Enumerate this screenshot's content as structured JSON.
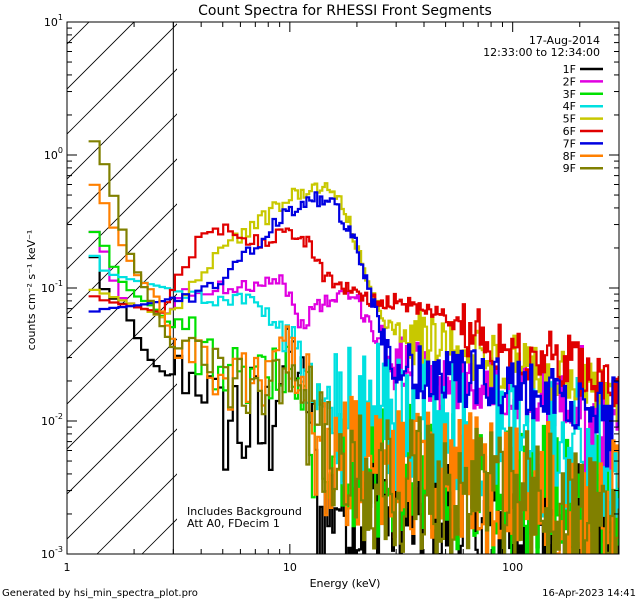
{
  "chart_data": {
    "type": "line",
    "title": "Count Spectra for RHESSI Front Segments",
    "xlabel": "Energy (keV)",
    "ylabel": "counts cm⁻² s⁻¹ keV⁻¹",
    "x_scale": "log",
    "y_scale": "log",
    "xlim": [
      1,
      300
    ],
    "ylim": [
      0.001,
      10
    ],
    "x_tick_labels": [
      {
        "value": 1,
        "label": "1"
      },
      {
        "value": 10,
        "label": "10"
      },
      {
        "value": 100,
        "label": "100"
      }
    ],
    "y_tick_labels": [
      {
        "value": 10,
        "base": "10",
        "exp": "1"
      },
      {
        "value": 1,
        "base": "10",
        "exp": "0"
      },
      {
        "value": 0.1,
        "base": "10",
        "exp": "-1"
      },
      {
        "value": 0.01,
        "base": "10",
        "exp": "-2"
      },
      {
        "value": 0.001,
        "base": "10",
        "exp": "-3"
      }
    ],
    "excluded_region_keV": [
      1,
      3
    ],
    "date": "17-Aug-2014",
    "time_range": "12:33:00 to 12:34:00",
    "annotations": [
      "Includes Background",
      "Att A0, FDecim 1"
    ],
    "footer_left": "Generated by hsi_min_spectra_plot.pro",
    "footer_right": "16-Apr-2023 14:41",
    "series": [
      {
        "name": "1F",
        "color": "#000000",
        "points": [
          [
            1.25,
            0.23
          ],
          [
            1.5,
            0.09
          ],
          [
            1.8,
            0.075
          ],
          [
            2.1,
            0.04
          ],
          [
            2.4,
            0.028
          ],
          [
            2.8,
            0.022
          ],
          [
            3.2,
            0.023
          ],
          [
            4,
            0.02
          ],
          [
            5,
            0.012
          ],
          [
            6,
            0.0095
          ],
          [
            7,
            0.0085
          ],
          [
            8,
            0.008
          ],
          [
            9,
            0.02
          ],
          [
            10,
            0.035
          ],
          [
            11,
            0.025
          ],
          [
            12,
            0.015
          ],
          [
            13,
            0.004
          ],
          [
            14,
            0.0015
          ],
          [
            16,
            0.003
          ],
          [
            18,
            0.0022
          ],
          [
            20,
            0.0018
          ],
          [
            25,
            0.0025
          ],
          [
            30,
            0.0022
          ],
          [
            40,
            0.002
          ],
          [
            60,
            0.0018
          ],
          [
            80,
            0.0017
          ],
          [
            120,
            0.0018
          ],
          [
            200,
            0.0016
          ],
          [
            300,
            0.0013
          ]
        ]
      },
      {
        "name": "2F",
        "color": "#e000e0",
        "points": [
          [
            1.25,
            0.28
          ],
          [
            1.4,
            0.25
          ],
          [
            1.6,
            0.12
          ],
          [
            1.8,
            0.08
          ],
          [
            2.2,
            0.07
          ],
          [
            2.7,
            0.06
          ],
          [
            3.5,
            0.09
          ],
          [
            5,
            0.1
          ],
          [
            7,
            0.11
          ],
          [
            9,
            0.12
          ],
          [
            10,
            0.09
          ],
          [
            11,
            0.05
          ],
          [
            13,
            0.07
          ],
          [
            15,
            0.08
          ],
          [
            18,
            0.09
          ],
          [
            20,
            0.08
          ],
          [
            22,
            0.06
          ],
          [
            25,
            0.045
          ],
          [
            28,
            0.03
          ],
          [
            35,
            0.025
          ],
          [
            45,
            0.02
          ],
          [
            60,
            0.02
          ],
          [
            80,
            0.018
          ],
          [
            120,
            0.016
          ],
          [
            200,
            0.012
          ],
          [
            300,
            0.008
          ]
        ]
      },
      {
        "name": "3F",
        "color": "#00e000",
        "points": [
          [
            1.25,
            0.3
          ],
          [
            1.5,
            0.2
          ],
          [
            1.7,
            0.12
          ],
          [
            2,
            0.09
          ],
          [
            2.5,
            0.07
          ],
          [
            3,
            0.05
          ],
          [
            4,
            0.035
          ],
          [
            5,
            0.025
          ],
          [
            6,
            0.02
          ],
          [
            7,
            0.02
          ],
          [
            8,
            0.018
          ],
          [
            9,
            0.025
          ],
          [
            10,
            0.03
          ],
          [
            11,
            0.02
          ],
          [
            12,
            0.01
          ],
          [
            14,
            0.006
          ],
          [
            17,
            0.004
          ],
          [
            20,
            0.0045
          ],
          [
            25,
            0.004
          ],
          [
            30,
            0.004
          ],
          [
            45,
            0.0035
          ],
          [
            60,
            0.0033
          ],
          [
            80,
            0.003
          ],
          [
            120,
            0.003
          ],
          [
            200,
            0.0025
          ],
          [
            300,
            0.002
          ]
        ]
      },
      {
        "name": "4F",
        "color": "#00e0e0",
        "points": [
          [
            1.25,
            0.2
          ],
          [
            1.5,
            0.13
          ],
          [
            1.8,
            0.12
          ],
          [
            2.2,
            0.11
          ],
          [
            2.8,
            0.1
          ],
          [
            3.5,
            0.09
          ],
          [
            4.5,
            0.08
          ],
          [
            6,
            0.085
          ],
          [
            7,
            0.08
          ],
          [
            8,
            0.06
          ],
          [
            9,
            0.05
          ],
          [
            10,
            0.04
          ],
          [
            11,
            0.035
          ],
          [
            12,
            0.02
          ],
          [
            14,
            0.012
          ],
          [
            16,
            0.012
          ],
          [
            20,
            0.01
          ],
          [
            25,
            0.011
          ],
          [
            30,
            0.01
          ],
          [
            40,
            0.009
          ],
          [
            60,
            0.009
          ],
          [
            80,
            0.008
          ],
          [
            120,
            0.007
          ],
          [
            200,
            0.006
          ],
          [
            300,
            0.005
          ]
        ]
      },
      {
        "name": "5F",
        "color": "#c8c800",
        "points": [
          [
            1.25,
            0.1
          ],
          [
            1.5,
            0.09
          ],
          [
            1.8,
            0.08
          ],
          [
            2.2,
            0.07
          ],
          [
            2.7,
            0.06
          ],
          [
            3,
            0.07
          ],
          [
            3.5,
            0.09
          ],
          [
            4,
            0.13
          ],
          [
            5,
            0.2
          ],
          [
            6,
            0.25
          ],
          [
            7,
            0.3
          ],
          [
            8,
            0.35
          ],
          [
            9,
            0.42
          ],
          [
            10,
            0.48
          ],
          [
            11,
            0.52
          ],
          [
            12,
            0.56
          ],
          [
            13,
            0.58
          ],
          [
            14,
            0.57
          ],
          [
            15,
            0.55
          ],
          [
            16,
            0.52
          ],
          [
            17,
            0.45
          ],
          [
            18,
            0.35
          ],
          [
            20,
            0.2
          ],
          [
            22,
            0.12
          ],
          [
            24,
            0.08
          ],
          [
            26,
            0.06
          ],
          [
            30,
            0.05
          ],
          [
            35,
            0.045
          ],
          [
            40,
            0.04
          ],
          [
            50,
            0.036
          ],
          [
            60,
            0.033
          ],
          [
            80,
            0.03
          ],
          [
            100,
            0.027
          ],
          [
            150,
            0.022
          ],
          [
            200,
            0.018
          ],
          [
            250,
            0.016
          ],
          [
            300,
            0.014
          ]
        ]
      },
      {
        "name": "6F",
        "color": "#e00000",
        "points": [
          [
            1.25,
            0.09
          ],
          [
            1.5,
            0.08
          ],
          [
            1.8,
            0.075
          ],
          [
            2.2,
            0.07
          ],
          [
            2.7,
            0.065
          ],
          [
            3,
            0.1
          ],
          [
            3.3,
            0.15
          ],
          [
            3.7,
            0.2
          ],
          [
            4.2,
            0.25
          ],
          [
            5,
            0.27
          ],
          [
            6,
            0.24
          ],
          [
            7,
            0.22
          ],
          [
            8,
            0.23
          ],
          [
            9,
            0.26
          ],
          [
            10,
            0.27
          ],
          [
            11,
            0.26
          ],
          [
            12,
            0.22
          ],
          [
            13,
            0.17
          ],
          [
            14,
            0.13
          ],
          [
            16,
            0.11
          ],
          [
            18,
            0.1
          ],
          [
            20,
            0.09
          ],
          [
            22,
            0.085
          ],
          [
            25,
            0.08
          ],
          [
            30,
            0.08
          ],
          [
            40,
            0.07
          ],
          [
            50,
            0.06
          ],
          [
            60,
            0.05
          ],
          [
            80,
            0.04
          ],
          [
            100,
            0.035
          ],
          [
            150,
            0.03
          ],
          [
            200,
            0.025
          ],
          [
            300,
            0.02
          ]
        ]
      },
      {
        "name": "7F",
        "color": "#0000e0",
        "points": [
          [
            1.25,
            0.065
          ],
          [
            1.5,
            0.07
          ],
          [
            1.8,
            0.072
          ],
          [
            2.2,
            0.075
          ],
          [
            2.7,
            0.08
          ],
          [
            3,
            0.085
          ],
          [
            3.5,
            0.08
          ],
          [
            4,
            0.09
          ],
          [
            5,
            0.12
          ],
          [
            6,
            0.16
          ],
          [
            7,
            0.2
          ],
          [
            8,
            0.27
          ],
          [
            9,
            0.33
          ],
          [
            10,
            0.38
          ],
          [
            11,
            0.42
          ],
          [
            12,
            0.45
          ],
          [
            13,
            0.46
          ],
          [
            14,
            0.45
          ],
          [
            15,
            0.44
          ],
          [
            16,
            0.42
          ],
          [
            17,
            0.35
          ],
          [
            18,
            0.3
          ],
          [
            20,
            0.2
          ],
          [
            22,
            0.12
          ],
          [
            24,
            0.07
          ],
          [
            26,
            0.045
          ],
          [
            28,
            0.03
          ],
          [
            30,
            0.025
          ],
          [
            35,
            0.023
          ],
          [
            40,
            0.022
          ],
          [
            50,
            0.022
          ],
          [
            60,
            0.021
          ],
          [
            80,
            0.02
          ],
          [
            100,
            0.018
          ],
          [
            150,
            0.015
          ],
          [
            200,
            0.013
          ],
          [
            250,
            0.012
          ],
          [
            300,
            0.011
          ]
        ]
      },
      {
        "name": "8F",
        "color": "#ff8000",
        "points": [
          [
            1.25,
            0.65
          ],
          [
            1.4,
            0.55
          ],
          [
            1.6,
            0.3
          ],
          [
            1.8,
            0.2
          ],
          [
            2.1,
            0.12
          ],
          [
            2.5,
            0.09
          ],
          [
            3,
            0.04
          ],
          [
            4,
            0.025
          ],
          [
            5,
            0.02
          ],
          [
            6,
            0.02
          ],
          [
            7,
            0.02
          ],
          [
            8,
            0.022
          ],
          [
            9,
            0.03
          ],
          [
            10,
            0.035
          ],
          [
            11,
            0.02
          ],
          [
            12,
            0.012
          ],
          [
            14,
            0.006
          ],
          [
            17,
            0.004
          ],
          [
            20,
            0.0045
          ],
          [
            25,
            0.0045
          ],
          [
            30,
            0.0042
          ],
          [
            45,
            0.0038
          ],
          [
            60,
            0.0035
          ],
          [
            80,
            0.0032
          ],
          [
            120,
            0.003
          ],
          [
            200,
            0.0026
          ],
          [
            300,
            0.0022
          ]
        ]
      },
      {
        "name": "9F",
        "color": "#808000",
        "points": [
          [
            1.25,
            1.5
          ],
          [
            1.35,
            1.2
          ],
          [
            1.5,
            0.8
          ],
          [
            1.65,
            0.45
          ],
          [
            1.8,
            0.25
          ],
          [
            2,
            0.15
          ],
          [
            2.3,
            0.09
          ],
          [
            2.7,
            0.05
          ],
          [
            3,
            0.035
          ],
          [
            3.5,
            0.03
          ],
          [
            4,
            0.028
          ],
          [
            5,
            0.022
          ],
          [
            6,
            0.018
          ],
          [
            7,
            0.017
          ],
          [
            8,
            0.016
          ],
          [
            9,
            0.02
          ],
          [
            10,
            0.025
          ],
          [
            11,
            0.018
          ],
          [
            12,
            0.01
          ],
          [
            14,
            0.005
          ],
          [
            17,
            0.0035
          ],
          [
            20,
            0.0038
          ],
          [
            25,
            0.0035
          ],
          [
            30,
            0.0033
          ],
          [
            45,
            0.003
          ],
          [
            60,
            0.0028
          ],
          [
            80,
            0.0026
          ],
          [
            120,
            0.0025
          ],
          [
            200,
            0.0021
          ],
          [
            300,
            0.0018
          ]
        ]
      }
    ]
  }
}
